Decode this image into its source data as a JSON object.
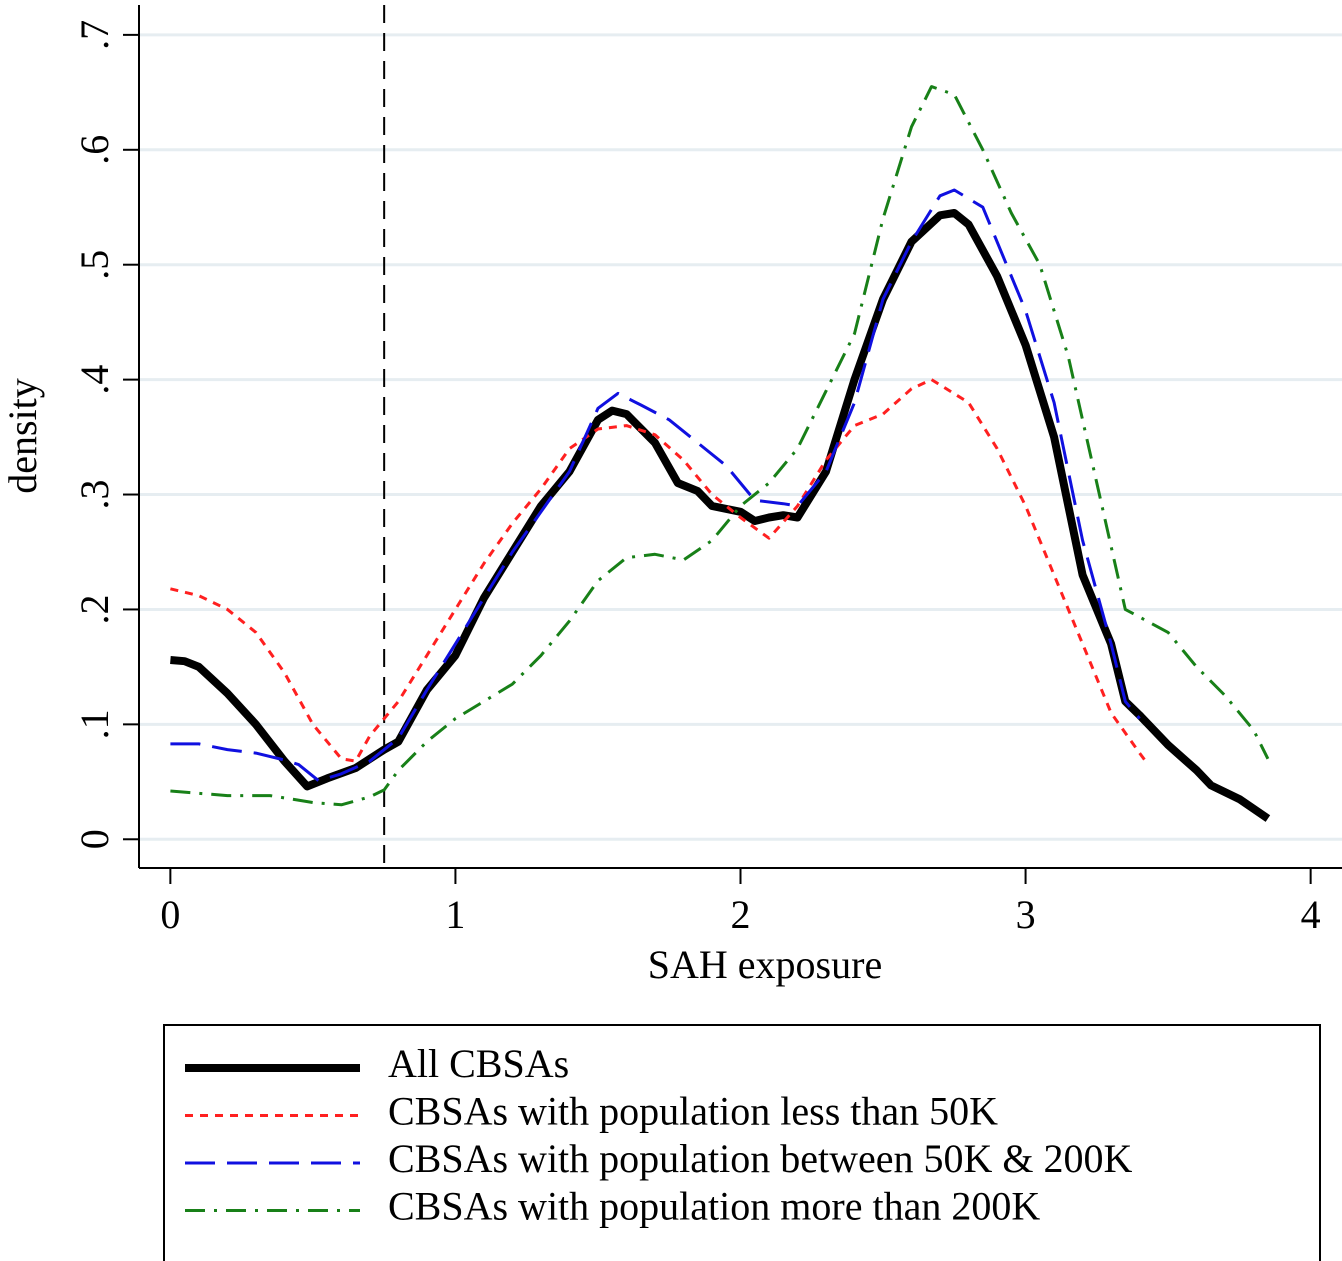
{
  "chart_data": {
    "type": "line",
    "xlabel": "SAH exposure",
    "ylabel": "density",
    "xlim": [
      -0.11,
      4.11
    ],
    "ylim": [
      -0.025,
      0.726
    ],
    "xticks": [
      0,
      1,
      2,
      3,
      4
    ],
    "yticks": [
      0,
      {
        "value": 0.1,
        "label": ".1"
      },
      {
        "value": 0.2,
        "label": ".2"
      },
      {
        "value": 0.3,
        "label": ".3"
      },
      {
        "value": 0.4,
        "label": ".4"
      },
      {
        "value": 0.5,
        "label": ".5"
      },
      {
        "value": 0.6,
        "label": ".6"
      },
      {
        "value": 0.7,
        "label": ".7"
      }
    ],
    "grid": true,
    "xline": 0.75,
    "legend": "bottom",
    "series": [
      {
        "name": "All CBSAs",
        "color": "#000000",
        "style": "solid",
        "x": [
          0,
          0.05,
          0.1,
          0.2,
          0.3,
          0.4,
          0.48,
          0.55,
          0.65,
          0.75,
          0.8,
          0.9,
          1.0,
          1.1,
          1.2,
          1.3,
          1.4,
          1.5,
          1.55,
          1.6,
          1.7,
          1.78,
          1.85,
          1.9,
          2.0,
          2.05,
          2.1,
          2.15,
          2.2,
          2.3,
          2.4,
          2.5,
          2.6,
          2.7,
          2.75,
          2.8,
          2.9,
          3.0,
          3.1,
          3.2,
          3.3,
          3.35,
          3.4,
          3.5,
          3.6,
          3.65,
          3.75,
          3.85
        ],
        "values": [
          0.156,
          0.155,
          0.15,
          0.127,
          0.1,
          0.068,
          0.046,
          0.053,
          0.062,
          0.078,
          0.085,
          0.13,
          0.16,
          0.21,
          0.25,
          0.29,
          0.32,
          0.365,
          0.373,
          0.37,
          0.345,
          0.31,
          0.303,
          0.29,
          0.285,
          0.277,
          0.28,
          0.282,
          0.28,
          0.32,
          0.4,
          0.47,
          0.52,
          0.543,
          0.545,
          0.535,
          0.49,
          0.43,
          0.35,
          0.23,
          0.17,
          0.12,
          0.108,
          0.082,
          0.06,
          0.047,
          0.035,
          0.018
        ]
      },
      {
        "name": "CBSAs with population less than 50K",
        "color": "#ff2020",
        "style": "dotted",
        "x": [
          0,
          0.1,
          0.2,
          0.3,
          0.4,
          0.5,
          0.6,
          0.65,
          0.7,
          0.8,
          0.9,
          1.0,
          1.1,
          1.2,
          1.3,
          1.4,
          1.5,
          1.6,
          1.7,
          1.8,
          1.9,
          2.0,
          2.1,
          2.2,
          2.3,
          2.4,
          2.5,
          2.6,
          2.67,
          2.8,
          2.9,
          3.0,
          3.1,
          3.2,
          3.3,
          3.4,
          3.43
        ],
        "values": [
          0.218,
          0.212,
          0.2,
          0.18,
          0.145,
          0.1,
          0.07,
          0.068,
          0.09,
          0.12,
          0.16,
          0.2,
          0.24,
          0.275,
          0.305,
          0.34,
          0.357,
          0.36,
          0.352,
          0.33,
          0.3,
          0.28,
          0.262,
          0.29,
          0.33,
          0.36,
          0.37,
          0.392,
          0.4,
          0.38,
          0.34,
          0.29,
          0.23,
          0.17,
          0.11,
          0.075,
          0.065
        ]
      },
      {
        "name": "CBSAs with population between 50K & 200K",
        "color": "#1010e0",
        "style": "dashed",
        "x": [
          0,
          0.1,
          0.2,
          0.3,
          0.4,
          0.45,
          0.52,
          0.6,
          0.7,
          0.8,
          0.9,
          1.0,
          1.1,
          1.2,
          1.3,
          1.4,
          1.5,
          1.57,
          1.65,
          1.75,
          1.85,
          1.95,
          2.05,
          2.15,
          2.2,
          2.3,
          2.4,
          2.5,
          2.6,
          2.7,
          2.75,
          2.85,
          3.0,
          3.1,
          3.2,
          3.3,
          3.35,
          3.4
        ],
        "values": [
          0.083,
          0.083,
          0.078,
          0.075,
          0.069,
          0.065,
          0.051,
          0.057,
          0.068,
          0.088,
          0.13,
          0.17,
          0.21,
          0.25,
          0.285,
          0.32,
          0.375,
          0.388,
          0.378,
          0.365,
          0.345,
          0.325,
          0.295,
          0.292,
          0.29,
          0.32,
          0.38,
          0.47,
          0.52,
          0.56,
          0.565,
          0.55,
          0.46,
          0.38,
          0.26,
          0.17,
          0.12,
          0.105
        ]
      },
      {
        "name": "CBSAs with population more than 200K",
        "color": "#188018",
        "style": "dashdot",
        "x": [
          0,
          0.2,
          0.35,
          0.5,
          0.6,
          0.7,
          0.75,
          0.8,
          0.9,
          1.0,
          1.1,
          1.2,
          1.3,
          1.4,
          1.5,
          1.6,
          1.7,
          1.8,
          1.9,
          2.0,
          2.1,
          2.2,
          2.3,
          2.4,
          2.5,
          2.6,
          2.67,
          2.75,
          2.85,
          2.95,
          3.05,
          3.15,
          3.25,
          3.35,
          3.5,
          3.6,
          3.7,
          3.8,
          3.85
        ],
        "values": [
          0.042,
          0.038,
          0.038,
          0.032,
          0.03,
          0.037,
          0.043,
          0.06,
          0.085,
          0.105,
          0.12,
          0.135,
          0.16,
          0.19,
          0.225,
          0.245,
          0.248,
          0.243,
          0.26,
          0.29,
          0.31,
          0.34,
          0.39,
          0.44,
          0.54,
          0.62,
          0.655,
          0.648,
          0.6,
          0.545,
          0.5,
          0.42,
          0.31,
          0.2,
          0.18,
          0.15,
          0.125,
          0.095,
          0.07
        ]
      }
    ]
  }
}
